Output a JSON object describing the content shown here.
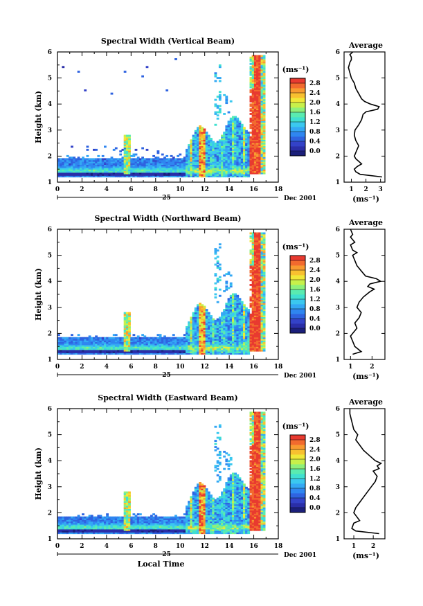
{
  "colorbar": {
    "unit_label": "(ms⁻¹)",
    "ticks": [
      "0.0",
      "0.4",
      "0.8",
      "1.2",
      "1.6",
      "2.0",
      "2.4",
      "2.8"
    ],
    "colors": [
      "#1b1f7a",
      "#2a2ea8",
      "#3342c8",
      "#2f63e0",
      "#2f86f0",
      "#34a8f4",
      "#3bc8ef",
      "#40e0d0",
      "#5aebb0",
      "#8ef07a",
      "#c8f04a",
      "#f0e838",
      "#f8c030",
      "#f89a30",
      "#f26a2e",
      "#e83a30"
    ]
  },
  "shared": {
    "date_label": "Dec 2001",
    "day_label": "25",
    "xlabel": "Local Time",
    "ylabel": "Height (km)",
    "avg_xlabel": "(ms⁻¹)"
  },
  "chart_data": [
    {
      "type": "heatmap",
      "title": "Spectral Width (Vertical Beam)",
      "xlabel": "",
      "ylabel": "Height (km)",
      "xlim": [
        0,
        18
      ],
      "ylim": [
        1,
        6
      ],
      "xticks": [
        0,
        2,
        4,
        6,
        8,
        10,
        12,
        14,
        16,
        18
      ],
      "yticks": [
        1,
        2,
        3,
        4,
        5,
        6
      ],
      "zlim": [
        0,
        3.0
      ],
      "avg": {
        "title": "Average",
        "xlim": [
          0.5,
          3.3
        ],
        "xticks": [
          1,
          2,
          3
        ],
        "x": [
          3.1,
          1.6,
          1.3,
          1.2,
          1.4,
          1.7,
          1.5,
          1.3,
          1.2,
          1.35,
          1.5,
          1.3,
          1.2,
          1.25,
          1.5,
          1.7,
          1.8,
          2.0,
          2.8,
          2.9,
          2.3,
          1.9,
          1.7,
          1.5,
          1.3,
          1.2,
          1.0,
          0.9,
          0.8,
          0.9,
          1.0,
          1.0,
          0.9,
          1.1
        ],
        "y": [
          1.2,
          1.3,
          1.4,
          1.5,
          1.6,
          1.7,
          1.8,
          1.9,
          2.0,
          2.2,
          2.4,
          2.6,
          2.8,
          3.0,
          3.2,
          3.4,
          3.6,
          3.7,
          3.8,
          3.9,
          4.0,
          4.1,
          4.2,
          4.4,
          4.6,
          4.8,
          5.0,
          5.2,
          5.4,
          5.6,
          5.7,
          5.8,
          5.9,
          6.0
        ]
      }
    },
    {
      "type": "heatmap",
      "title": "Spectral Width (Northward Beam)",
      "xlabel": "",
      "ylabel": "Height (km)",
      "xlim": [
        0,
        18
      ],
      "ylim": [
        1,
        6
      ],
      "xticks": [
        0,
        2,
        4,
        6,
        8,
        10,
        12,
        14,
        16,
        18
      ],
      "yticks": [
        1,
        2,
        3,
        4,
        5,
        6
      ],
      "zlim": [
        0,
        3.0
      ],
      "avg": {
        "title": "Average",
        "xlim": [
          0.7,
          2.6
        ],
        "xticks": [
          1,
          2
        ],
        "x": [
          1.1,
          1.5,
          1.2,
          1.1,
          1.0,
          1.1,
          1.3,
          1.2,
          1.4,
          1.5,
          1.3,
          1.4,
          1.6,
          1.9,
          2.1,
          1.8,
          1.9,
          2.4,
          2.2,
          1.7,
          1.5,
          1.3,
          1.2,
          1.1,
          1.3,
          1.1,
          1.0,
          1.2,
          1.0,
          1.1,
          1.0
        ],
        "y": [
          1.2,
          1.3,
          1.5,
          1.7,
          1.9,
          2.0,
          2.2,
          2.4,
          2.6,
          2.8,
          3.0,
          3.2,
          3.4,
          3.6,
          3.7,
          3.8,
          3.9,
          4.0,
          4.1,
          4.2,
          4.4,
          4.6,
          4.8,
          5.0,
          5.1,
          5.2,
          5.4,
          5.5,
          5.7,
          5.8,
          6.0
        ]
      }
    },
    {
      "type": "heatmap",
      "title": "Spectral Width (Eastward Beam)",
      "xlabel": "Local Time",
      "ylabel": "Height (km)",
      "xlim": [
        0,
        18
      ],
      "ylim": [
        1,
        6
      ],
      "xticks": [
        0,
        2,
        4,
        6,
        8,
        10,
        12,
        14,
        16,
        18
      ],
      "yticks": [
        1,
        2,
        3,
        4,
        5,
        6
      ],
      "zlim": [
        0,
        3.0
      ],
      "avg": {
        "title": "Average",
        "xlim": [
          0.5,
          2.6
        ],
        "xticks": [
          1,
          2
        ],
        "x": [
          2.3,
          1.1,
          0.9,
          1.0,
          1.3,
          1.1,
          1.0,
          1.1,
          1.3,
          1.5,
          1.7,
          1.9,
          2.1,
          2.2,
          2.0,
          2.3,
          2.2,
          2.4,
          2.1,
          1.8,
          1.5,
          1.3,
          1.1,
          1.2,
          1.0,
          0.9,
          0.8,
          0.8
        ],
        "y": [
          1.2,
          1.3,
          1.4,
          1.6,
          1.7,
          1.9,
          2.0,
          2.2,
          2.4,
          2.6,
          2.8,
          3.0,
          3.2,
          3.4,
          3.6,
          3.7,
          3.8,
          3.9,
          4.0,
          4.2,
          4.4,
          4.6,
          4.8,
          5.0,
          5.2,
          5.5,
          5.8,
          6.0
        ]
      }
    }
  ]
}
